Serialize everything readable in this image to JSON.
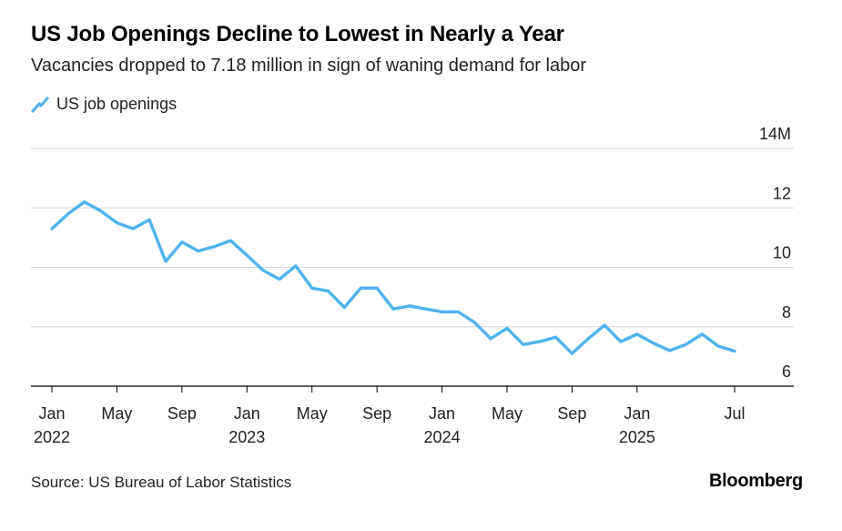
{
  "chart_data": {
    "type": "line",
    "title": "US Job Openings Decline to Lowest in Nearly a Year",
    "subtitle": "Vacancies dropped to 7.18 million in sign of waning demand for labor",
    "legend": {
      "placement": "top-left",
      "entries": [
        "US job openings"
      ]
    },
    "xlabel": "",
    "ylabel": "",
    "ylim": [
      6,
      14
    ],
    "yticks": [
      {
        "value": 6,
        "label": "6"
      },
      {
        "value": 8,
        "label": "8"
      },
      {
        "value": 10,
        "label": "10"
      },
      {
        "value": 12,
        "label": "12"
      },
      {
        "value": 14,
        "label": "14M"
      }
    ],
    "xlim": [
      "2022-01",
      "2025-07"
    ],
    "xticks": [
      {
        "date": "2022-01",
        "label": "Jan",
        "year": "2022"
      },
      {
        "date": "2022-05",
        "label": "May",
        "year": ""
      },
      {
        "date": "2022-09",
        "label": "Sep",
        "year": ""
      },
      {
        "date": "2023-01",
        "label": "Jan",
        "year": "2023"
      },
      {
        "date": "2023-05",
        "label": "May",
        "year": ""
      },
      {
        "date": "2023-09",
        "label": "Sep",
        "year": ""
      },
      {
        "date": "2024-01",
        "label": "Jan",
        "year": "2024"
      },
      {
        "date": "2024-05",
        "label": "May",
        "year": ""
      },
      {
        "date": "2024-09",
        "label": "Sep",
        "year": ""
      },
      {
        "date": "2025-01",
        "label": "Jan",
        "year": "2025"
      },
      {
        "date": "2025-07",
        "label": "Jul",
        "year": ""
      }
    ],
    "grid": true,
    "color": "#4fb3ee",
    "series": [
      {
        "name": "US job openings",
        "x": [
          "2022-01",
          "2022-02",
          "2022-03",
          "2022-04",
          "2022-05",
          "2022-06",
          "2022-07",
          "2022-08",
          "2022-09",
          "2022-10",
          "2022-11",
          "2022-12",
          "2023-01",
          "2023-02",
          "2023-03",
          "2023-04",
          "2023-05",
          "2023-06",
          "2023-07",
          "2023-08",
          "2023-09",
          "2023-10",
          "2023-11",
          "2023-12",
          "2024-01",
          "2024-02",
          "2024-03",
          "2024-04",
          "2024-05",
          "2024-06",
          "2024-07",
          "2024-08",
          "2024-09",
          "2024-10",
          "2024-11",
          "2024-12",
          "2025-01",
          "2025-02",
          "2025-03",
          "2025-04",
          "2025-05",
          "2025-06",
          "2025-07"
        ],
        "values": [
          11.3,
          11.8,
          12.2,
          11.9,
          11.5,
          11.3,
          11.6,
          10.2,
          10.85,
          10.55,
          10.7,
          10.9,
          10.4,
          9.9,
          9.6,
          10.05,
          9.3,
          9.2,
          8.65,
          9.3,
          9.3,
          8.6,
          8.7,
          8.6,
          8.5,
          8.5,
          8.15,
          7.6,
          7.95,
          7.4,
          7.5,
          7.65,
          7.1,
          7.6,
          8.05,
          7.5,
          7.75,
          7.45,
          7.2,
          7.4,
          7.75,
          7.35,
          7.18
        ]
      }
    ]
  },
  "footer": {
    "source": "Source: US Bureau of Labor Statistics",
    "brand": "Bloomberg"
  }
}
